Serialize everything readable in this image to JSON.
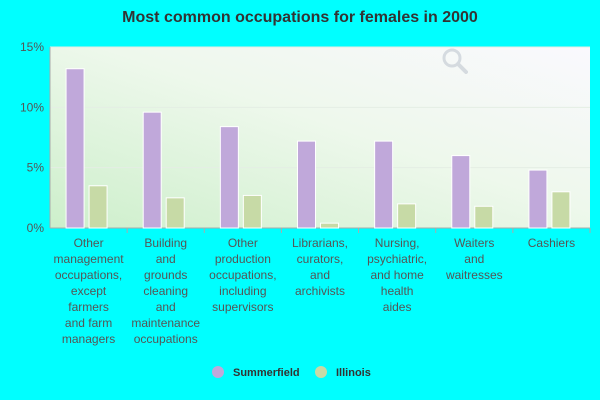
{
  "chart_data": {
    "type": "bar",
    "title": "Most common occupations for females in 2000",
    "categories": [
      [
        "Other",
        "management",
        "occupations,",
        "except",
        "farmers",
        "and farm",
        "managers"
      ],
      [
        "Building",
        "and",
        "grounds",
        "cleaning",
        "and",
        "maintenance",
        "occupations"
      ],
      [
        "Other",
        "production",
        "occupations,",
        "including",
        "supervisors"
      ],
      [
        "Librarians,",
        "curators,",
        "and",
        "archivists"
      ],
      [
        "Nursing,",
        "psychiatric,",
        "and home",
        "health",
        "aides"
      ],
      [
        "Waiters",
        "and",
        "waitresses"
      ],
      [
        "Cashiers"
      ]
    ],
    "series": [
      {
        "name": "Summerfield",
        "color": "#C0A8DA",
        "values": [
          13.2,
          9.6,
          8.4,
          7.2,
          7.2,
          6.0,
          4.8
        ]
      },
      {
        "name": "Illinois",
        "color": "#C7DAA6",
        "values": [
          3.5,
          2.5,
          2.7,
          0.4,
          2.0,
          1.8,
          3.0
        ]
      }
    ],
    "yticks": [
      "0%",
      "5%",
      "10%",
      "15%"
    ],
    "ytick_values": [
      0,
      5,
      10,
      15
    ],
    "ylim": [
      0,
      15
    ],
    "legend_position": "bottom-center",
    "grid": true
  }
}
